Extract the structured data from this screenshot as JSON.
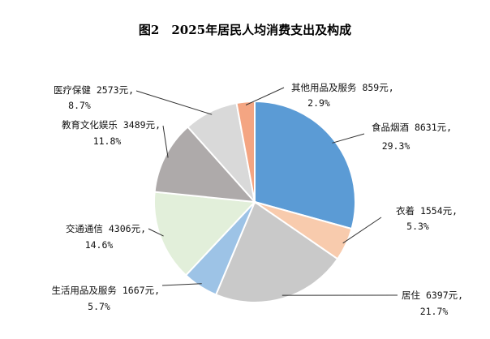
{
  "chart_data": {
    "type": "pie",
    "title": "图2　2025年居民人均消费支出及构成",
    "slices": [
      {
        "category": "食品烟酒",
        "amount": "8631元,",
        "share": 29.3,
        "share_label": "29.3%",
        "color": "#5b9bd5"
      },
      {
        "category": "衣着",
        "amount": "1554元,",
        "share": 5.3,
        "share_label": "5.3%",
        "color": "#f8cbad"
      },
      {
        "category": "居住",
        "amount": "6397元,",
        "share": 21.7,
        "share_label": "21.7%",
        "color": "#c9c9c9"
      },
      {
        "category": "生活用品及服务",
        "amount": "1667元,",
        "share": 5.7,
        "share_label": "5.7%",
        "color": "#9dc3e6"
      },
      {
        "category": "交通通信",
        "amount": "4306元,",
        "share": 14.6,
        "share_label": "14.6%",
        "color": "#e2efda"
      },
      {
        "category": "教育文化娱乐",
        "amount": "3489元,",
        "share": 11.8,
        "share_label": "11.8%",
        "color": "#aeaaaa"
      },
      {
        "category": "医疗保健",
        "amount": "2573元,",
        "share": 8.7,
        "share_label": "8.7%",
        "color": "#d9d9d9"
      },
      {
        "category": "其他用品及服务",
        "amount": "859元,",
        "share": 2.9,
        "share_label": "2.9%",
        "color": "#f4a582"
      }
    ]
  }
}
